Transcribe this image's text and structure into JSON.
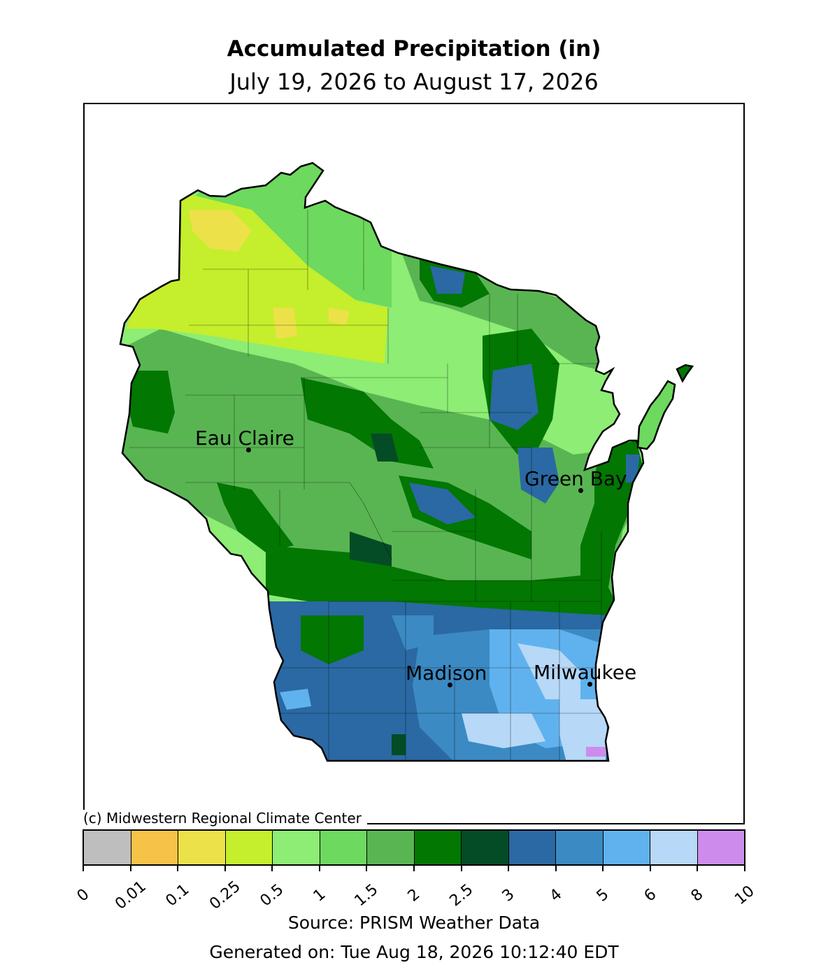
{
  "title": "Accumulated Precipitation (in)",
  "subtitle": "July 19, 2026 to August 17, 2026",
  "credit": "(c) Midwestern Regional Climate Center",
  "source": "Source: PRISM Weather Data",
  "generated": "Generated on: Tue Aug 18, 2026 10:12:40 EDT",
  "cities": [
    {
      "name": "Eau Claire"
    },
    {
      "name": "Green Bay"
    },
    {
      "name": "Madison"
    },
    {
      "name": "Milwaukee"
    }
  ],
  "legend": {
    "ticks": [
      "0",
      "0.01",
      "0.1",
      "0.25",
      "0.5",
      "1",
      "1.5",
      "2",
      "2.5",
      "3",
      "4",
      "5",
      "6",
      "8",
      "10"
    ],
    "colors": [
      "#bebebe",
      "#f7c248",
      "#ede149",
      "#c5ee2c",
      "#8ded74",
      "#6dd95e",
      "#59b552",
      "#027702",
      "#044c25",
      "#2a69a3",
      "#3b8ac3",
      "#60b2ee",
      "#b7d8f7",
      "#cd8ceb"
    ]
  }
}
